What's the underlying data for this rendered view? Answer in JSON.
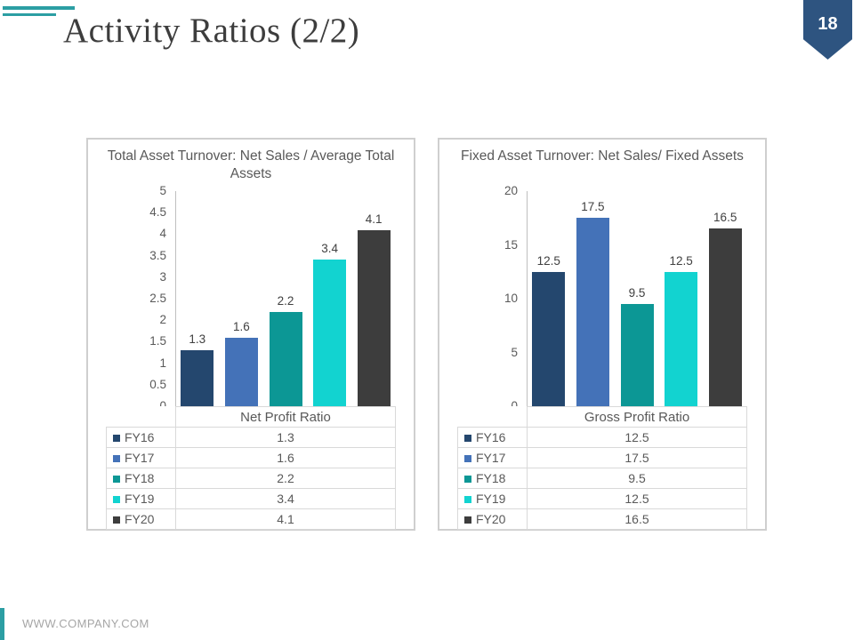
{
  "slide": {
    "title": "Activity Ratios (2/2)",
    "page_number": "18",
    "footer": "WWW.COMPANY.COM"
  },
  "colors": {
    "accent_teal": "#2C9EA3",
    "badge_navy": "#2E5480",
    "chart_text": "#595959",
    "bar_label_text": "#404040",
    "card_border": "#CFCFCF",
    "table_border": "#D9D9D9",
    "series": [
      "#24476E",
      "#4472B8",
      "#0C9795",
      "#12D3D0",
      "#3D3D3D"
    ]
  },
  "chart_data": [
    {
      "type": "bar",
      "title": "Total Asset Turnover: Net Sales / Average Total Assets",
      "categories": [
        "FY16",
        "FY17",
        "FY18",
        "FY19",
        "FY20"
      ],
      "values": [
        1.3,
        1.6,
        2.2,
        3.4,
        4.1
      ],
      "table_header": "Net Profit Ratio",
      "xlabel": "",
      "ylabel": "",
      "ylim": [
        0,
        5
      ],
      "yticks": [
        0,
        0.5,
        1,
        1.5,
        2,
        2.5,
        3,
        3.5,
        4,
        4.5,
        5
      ],
      "grid": false,
      "legend_position": "data-table-left-column",
      "data_labels": true
    },
    {
      "type": "bar",
      "title": "Fixed Asset Turnover: Net Sales/ Fixed Assets",
      "categories": [
        "FY16",
        "FY17",
        "FY18",
        "FY19",
        "FY20"
      ],
      "values": [
        12.5,
        17.5,
        9.5,
        12.5,
        16.5
      ],
      "table_header": "Gross Profit Ratio",
      "xlabel": "",
      "ylabel": "",
      "ylim": [
        0,
        20
      ],
      "yticks": [
        0,
        5,
        10,
        15,
        20
      ],
      "grid": false,
      "legend_position": "data-table-left-column",
      "data_labels": true
    }
  ]
}
